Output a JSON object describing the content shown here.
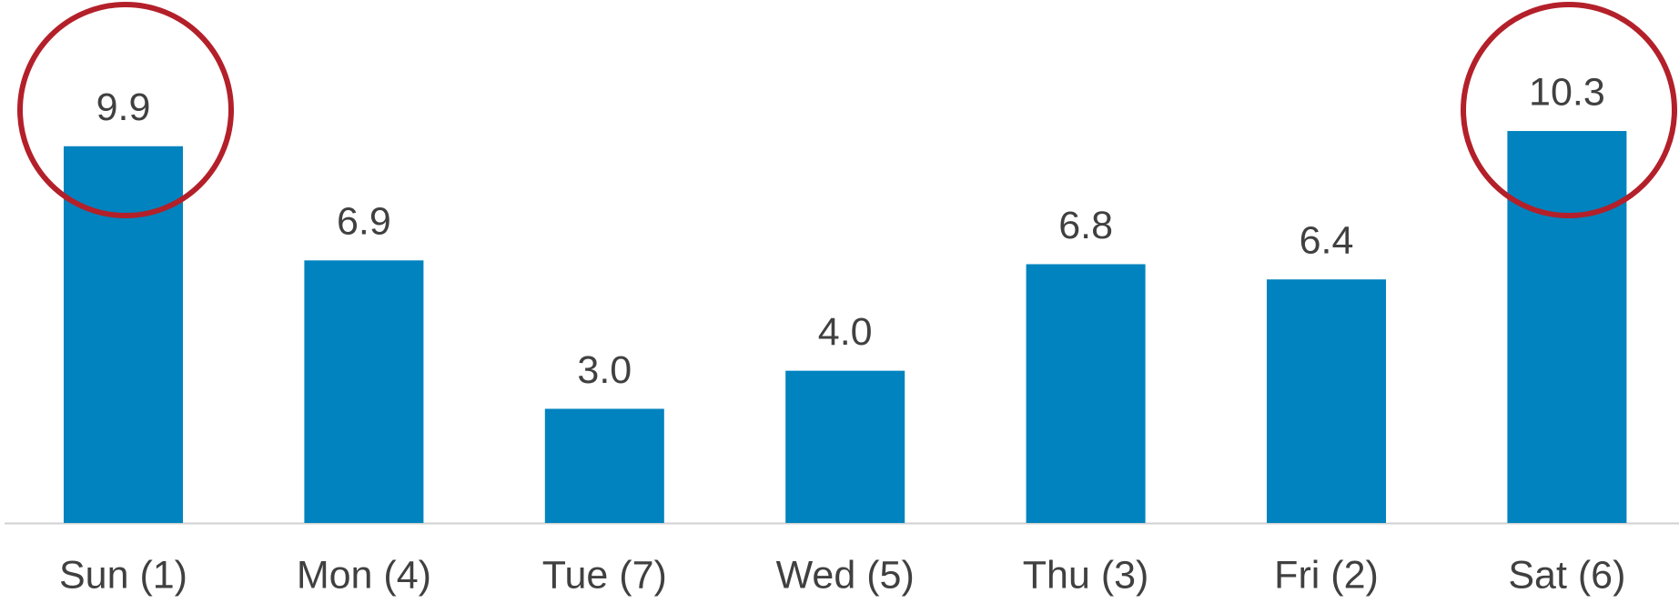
{
  "chart_data": {
    "type": "bar",
    "categories": [
      "Sun (1)",
      "Mon (4)",
      "Tue (7)",
      "Wed (5)",
      "Thu (3)",
      "Fri (2)",
      "Sat (6)"
    ],
    "values": [
      9.9,
      6.9,
      3.0,
      4.0,
      6.8,
      6.4,
      10.3
    ],
    "value_labels": [
      "9.9",
      "6.9",
      "3.0",
      "4.0",
      "6.8",
      "6.4",
      "10.3"
    ],
    "color": "#0083be"
  }
}
